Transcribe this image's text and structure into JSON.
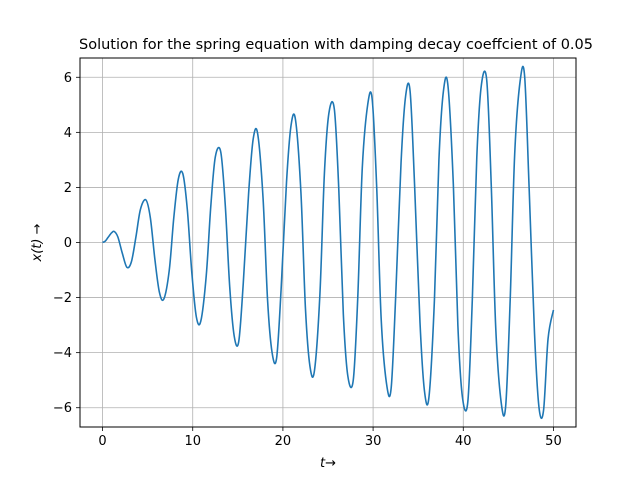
{
  "chart_data": {
    "type": "line",
    "title": "Solution for the spring equation with damping decay coeffcient of 0.05",
    "xlabel": "t→",
    "ylabel": "x(t) →",
    "xlim": [
      -2.5,
      52.5
    ],
    "ylim": [
      -6.7,
      6.7
    ],
    "xticks": [
      0,
      10,
      20,
      30,
      40,
      50
    ],
    "yticks": [
      -6,
      -4,
      -2,
      0,
      2,
      4,
      6
    ],
    "xtick_labels": [
      "0",
      "10",
      "20",
      "30",
      "40",
      "50"
    ],
    "ytick_labels": [
      "−6",
      "−4",
      "−2",
      "0",
      "2",
      "4",
      "6"
    ],
    "grid": true,
    "series": [
      {
        "name": "x(t)",
        "color": "#1f77b4",
        "x": [
          0,
          0.3,
          0.6,
          1.0,
          1.3,
          1.7,
          2.2,
          2.7,
          3.2,
          3.7,
          4.2,
          4.8,
          5.3,
          5.8,
          6.3,
          6.8,
          7.4,
          7.9,
          8.4,
          8.9,
          9.4,
          9.9,
          10.4,
          10.9,
          11.5,
          12.0,
          12.5,
          13.1,
          13.6,
          14.1,
          14.6,
          15.1,
          15.6,
          16.2,
          16.7,
          17.2,
          17.8,
          18.3,
          18.8,
          19.3,
          19.8,
          20.4,
          20.9,
          21.4,
          22.0,
          22.5,
          23.0,
          23.5,
          24.1,
          24.6,
          25.1,
          25.7,
          26.2,
          26.7,
          27.2,
          27.8,
          28.3,
          28.8,
          29.4,
          29.9,
          30.4,
          30.9,
          31.5,
          32.0,
          32.5,
          33.1,
          33.6,
          34.1,
          34.6,
          35.2,
          35.7,
          36.2,
          36.8,
          37.3,
          37.8,
          38.3,
          38.9,
          39.4,
          39.9,
          40.5,
          41.0,
          41.5,
          42.0,
          42.6,
          43.1,
          43.6,
          44.2,
          44.7,
          45.2,
          45.7,
          46.3,
          46.8,
          47.3,
          47.9,
          48.4,
          48.9,
          49.4,
          50.0
        ],
        "y": [
          0.0,
          0.05,
          0.18,
          0.35,
          0.4,
          0.2,
          -0.4,
          -0.9,
          -0.7,
          0.2,
          1.2,
          1.55,
          0.9,
          -0.6,
          -1.8,
          -2.05,
          -1.0,
          0.9,
          2.3,
          2.5,
          1.2,
          -1.1,
          -2.7,
          -2.85,
          -1.2,
          1.3,
          3.1,
          3.3,
          1.4,
          -1.6,
          -3.4,
          -3.6,
          -1.5,
          1.8,
          3.75,
          3.95,
          1.6,
          -2.1,
          -4.0,
          -4.2,
          -1.7,
          2.2,
          4.25,
          4.45,
          1.8,
          -2.4,
          -4.5,
          -4.65,
          -1.9,
          2.5,
          4.7,
          4.85,
          1.9,
          -2.6,
          -4.85,
          -5.0,
          -2.0,
          2.7,
          5.0,
          5.2,
          2.0,
          -2.8,
          -5.15,
          -5.3,
          -2.0,
          2.9,
          5.3,
          5.5,
          2.1,
          -2.9,
          -5.4,
          -5.6,
          -2.1,
          3.0,
          5.5,
          5.7,
          2.1,
          -3.0,
          -5.6,
          -5.8,
          -2.1,
          3.1,
          5.7,
          5.9,
          2.1,
          -3.1,
          -5.8,
          -5.95,
          -2.1,
          3.2,
          5.85,
          6.05,
          2.0,
          -3.3,
          -6.0,
          -6.1,
          -3.5,
          -2.45
        ]
      }
    ]
  }
}
